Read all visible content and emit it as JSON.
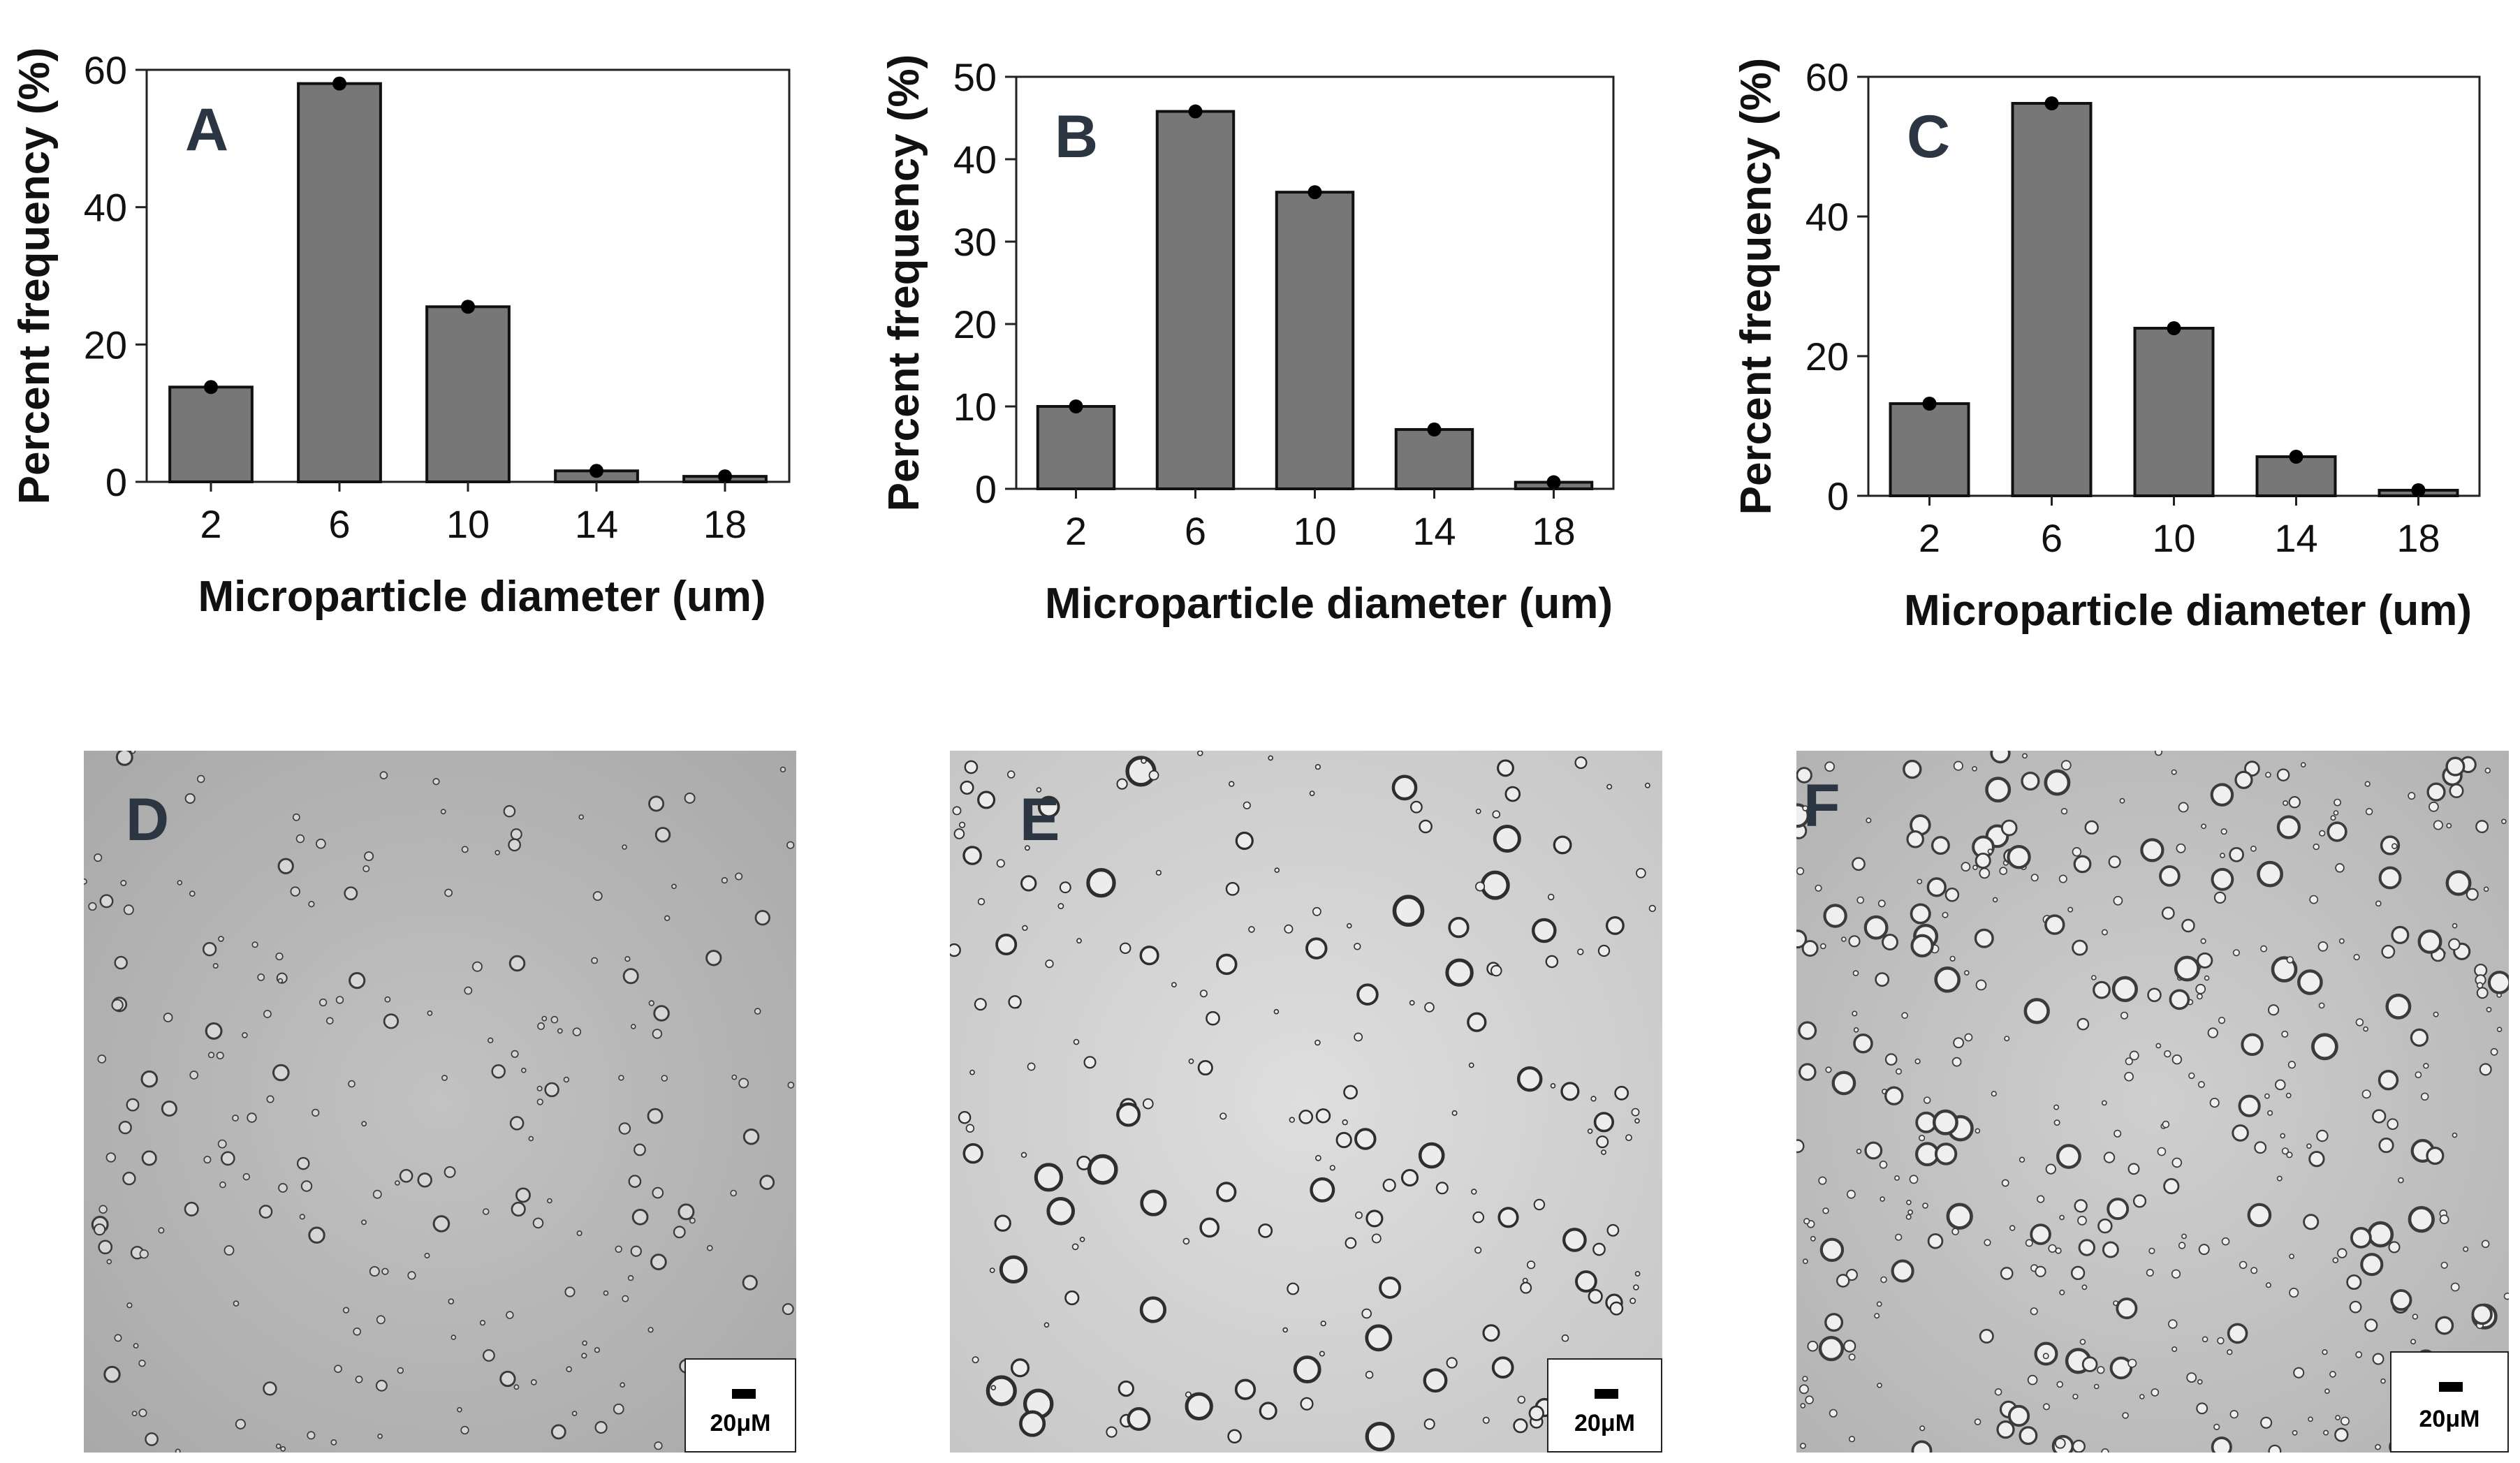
{
  "colors": {
    "bar_fill": "#777777",
    "bar_stroke": "#111111",
    "point": "#000000",
    "panel_letter": "#2c3542",
    "micro_bg_D": "#b9b9b9",
    "micro_bg_E": "#d4d4d4",
    "micro_bg_F": "#c4c4c4"
  },
  "chart_data": [
    {
      "type": "bar",
      "panel": "A",
      "categories": [
        "2",
        "6",
        "10",
        "14",
        "18"
      ],
      "values": [
        13.8,
        58.0,
        25.5,
        1.6,
        0.8
      ],
      "points": [
        13.8,
        58.0,
        25.5,
        1.6,
        0.8
      ],
      "xlabel": "Microparticle diameter (um)",
      "ylabel": "Percent  frequency (%)",
      "ylim": [
        0,
        60
      ],
      "yticks": [
        0,
        20,
        40,
        60
      ],
      "grid": false
    },
    {
      "type": "bar",
      "panel": "B",
      "categories": [
        "2",
        "6",
        "10",
        "14",
        "18"
      ],
      "values": [
        10.0,
        45.8,
        36.0,
        7.2,
        0.8
      ],
      "points": [
        10.0,
        45.8,
        36.0,
        7.2,
        0.8
      ],
      "xlabel": "Microparticle diameter (um)",
      "ylabel": "Percent  frequency (%)",
      "ylim": [
        0,
        50
      ],
      "yticks": [
        0,
        10,
        20,
        30,
        40,
        50
      ],
      "grid": false
    },
    {
      "type": "bar",
      "panel": "C",
      "categories": [
        "2",
        "6",
        "10",
        "14",
        "18"
      ],
      "values": [
        13.2,
        56.2,
        24.0,
        5.6,
        0.8
      ],
      "points": [
        13.2,
        56.2,
        24.0,
        5.6,
        0.8
      ],
      "xlabel": "Microparticle diameter (um)",
      "ylabel": "Percent frequency (%)",
      "ylim": [
        0,
        60
      ],
      "yticks": [
        0,
        20,
        40,
        60
      ],
      "grid": false
    }
  ],
  "micrographs": [
    {
      "panel": "D",
      "scale_label": "20μM"
    },
    {
      "panel": "E",
      "scale_label": "20μM"
    },
    {
      "panel": "F",
      "scale_label": "20μM"
    }
  ]
}
